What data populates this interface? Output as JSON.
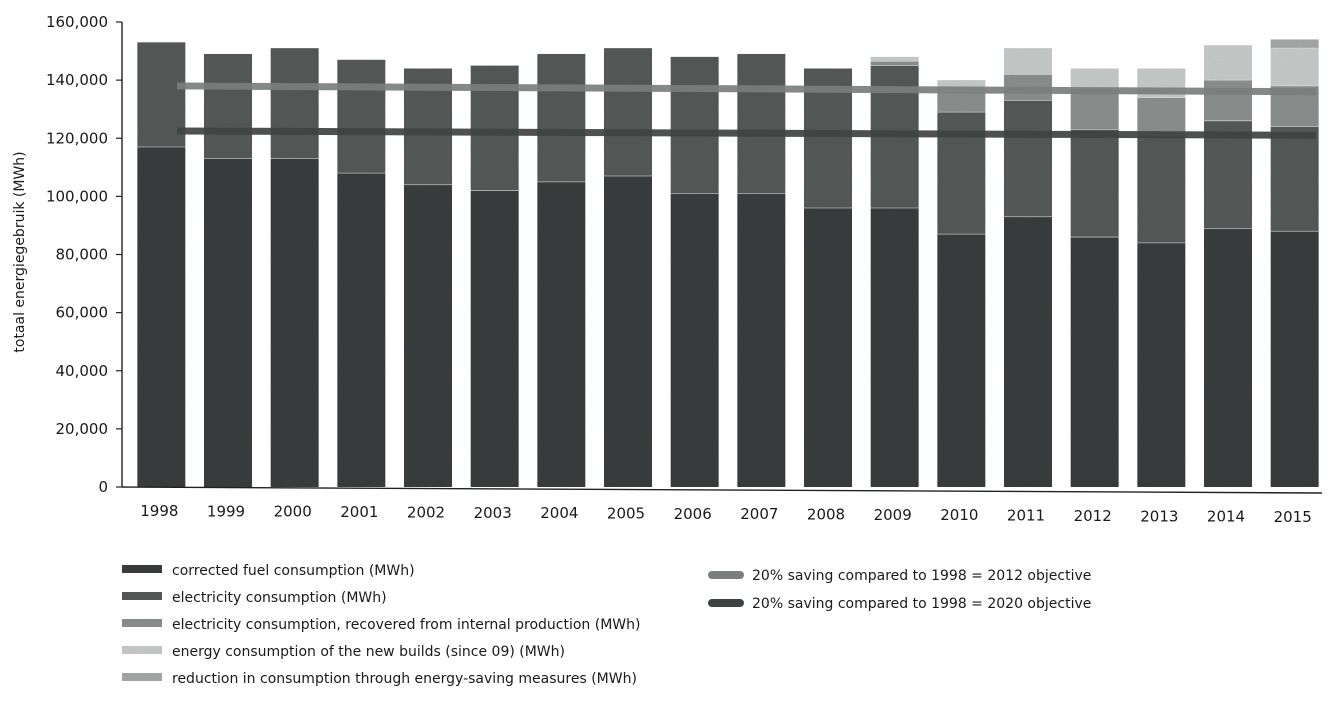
{
  "chart_data": {
    "type": "bar",
    "stacked": true,
    "title": "",
    "ylabel": "totaal energiegebruik (MWh)",
    "xlabel": "",
    "ylim": [
      0,
      160000
    ],
    "yticks": [
      0,
      20000,
      40000,
      60000,
      80000,
      100000,
      120000,
      140000,
      160000
    ],
    "ytick_labels": [
      "0",
      "20,000",
      "40,000",
      "60,000",
      "80,000",
      "100,000",
      "120,000",
      "140,000",
      "160,000"
    ],
    "categories": [
      "1998",
      "1999",
      "2000",
      "2001",
      "2002",
      "2003",
      "2004",
      "2005",
      "2006",
      "2007",
      "2008",
      "2009",
      "2010",
      "2011",
      "2012",
      "2013",
      "2014",
      "2015"
    ],
    "series": [
      {
        "name": "corrected fuel consumption (MWh)",
        "color": "#3a3d3c",
        "values": [
          117000,
          113000,
          113000,
          108000,
          104000,
          102000,
          105000,
          107000,
          101000,
          101000,
          96000,
          96000,
          87000,
          93000,
          86000,
          84000,
          89000,
          88000
        ]
      },
      {
        "name": "electricity consumption (MWh)",
        "color": "#555957",
        "values": [
          36000,
          36000,
          38000,
          39000,
          40000,
          43000,
          44000,
          44000,
          47000,
          48000,
          48000,
          49000,
          42000,
          40000,
          37000,
          37000,
          37000,
          36000
        ]
      },
      {
        "name": "electricity consumption, recovered from internal production (MWh)",
        "color": "#8b8f8d",
        "values": [
          0,
          0,
          0,
          0,
          0,
          0,
          0,
          0,
          0,
          0,
          0,
          1500,
          7000,
          9000,
          14000,
          13000,
          14000,
          14000
        ]
      },
      {
        "name": "energy consumption of the new builds (since 09)  (MWh)",
        "color": "#c6cac8",
        "values": [
          0,
          0,
          0,
          0,
          0,
          0,
          0,
          0,
          0,
          0,
          0,
          1500,
          4000,
          9000,
          7000,
          10000,
          12000,
          13000
        ]
      },
      {
        "name": "reduction in consumption through energy-saving measures (MWh)",
        "color": "#a4a8a6",
        "values": [
          0,
          0,
          0,
          0,
          0,
          0,
          0,
          0,
          0,
          0,
          0,
          0,
          0,
          0,
          0,
          0,
          0,
          3000
        ]
      }
    ],
    "lines": [
      {
        "name": "20% saving compared to 1998 = 2012 objective",
        "color": "#7a7e7c",
        "start": 138000,
        "end": 136000
      },
      {
        "name": "20% saving compared to 1998 = 2020 objective",
        "color": "#3f4341",
        "start": 122500,
        "end": 121000
      }
    ]
  }
}
